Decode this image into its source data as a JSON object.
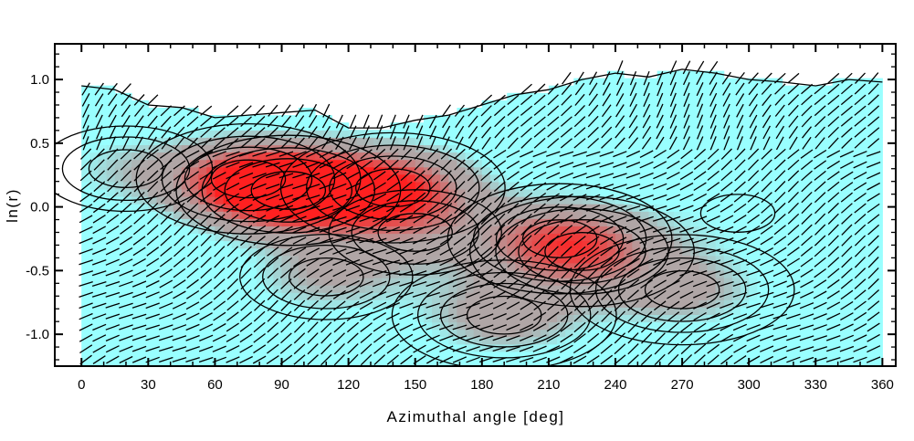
{
  "chart_data": {
    "type": "heatmap",
    "title": "",
    "xlabel": "Azimuthal angle [deg]",
    "ylabel": "ln(r)",
    "xlim": [
      -12,
      366
    ],
    "ylim": [
      -1.25,
      1.28
    ],
    "xticks": [
      0,
      30,
      60,
      90,
      120,
      150,
      180,
      210,
      240,
      270,
      300,
      330,
      360
    ],
    "xtick_labels": [
      "0",
      "30",
      "60",
      "90",
      "120",
      "150",
      "180",
      "210",
      "240",
      "270",
      "300",
      "330",
      "360"
    ],
    "yticks": [
      1.0,
      0.5,
      0.0,
      -0.5,
      -1.0
    ],
    "ytick_labels": [
      "1.0",
      "0.5",
      "0.0",
      "-0.5",
      "-1.0"
    ],
    "grid": false,
    "legend": "none",
    "colors": {
      "low": "#99ffff",
      "mid": "#b0a6a6",
      "high": "#ff2020",
      "peak": "#ff0000",
      "contour": "#000000",
      "hatch": "#000000"
    },
    "hotspots": [
      {
        "x": 93,
        "y": 0.13,
        "level": 1.0
      },
      {
        "x": 140,
        "y": 0.15,
        "level": 0.85
      },
      {
        "x": 75,
        "y": 0.22,
        "level": 0.55
      },
      {
        "x": 215,
        "y": -0.25,
        "level": 0.55
      },
      {
        "x": 190,
        "y": -0.85,
        "level": 0.45
      },
      {
        "x": 225,
        "y": -0.35,
        "level": 0.4
      },
      {
        "x": 270,
        "y": -0.65,
        "level": 0.4
      },
      {
        "x": 110,
        "y": -0.55,
        "level": 0.35
      },
      {
        "x": 150,
        "y": -0.2,
        "level": 0.3
      },
      {
        "x": 295,
        "y": -0.05,
        "level": 0.15
      },
      {
        "x": 20,
        "y": 0.3,
        "level": 0.25
      }
    ],
    "upper_boundary": [
      [
        0,
        0.95
      ],
      [
        15,
        0.92
      ],
      [
        30,
        0.8
      ],
      [
        45,
        0.78
      ],
      [
        60,
        0.7
      ],
      [
        75,
        0.72
      ],
      [
        90,
        0.74
      ],
      [
        105,
        0.76
      ],
      [
        120,
        0.62
      ],
      [
        135,
        0.62
      ],
      [
        150,
        0.68
      ],
      [
        165,
        0.72
      ],
      [
        180,
        0.8
      ],
      [
        195,
        0.88
      ],
      [
        210,
        0.92
      ],
      [
        225,
        1.0
      ],
      [
        240,
        1.05
      ],
      [
        255,
        1.02
      ],
      [
        270,
        1.08
      ],
      [
        285,
        1.05
      ],
      [
        300,
        1.0
      ],
      [
        315,
        0.98
      ],
      [
        330,
        0.95
      ],
      [
        345,
        1.0
      ],
      [
        360,
        0.98
      ]
    ]
  }
}
